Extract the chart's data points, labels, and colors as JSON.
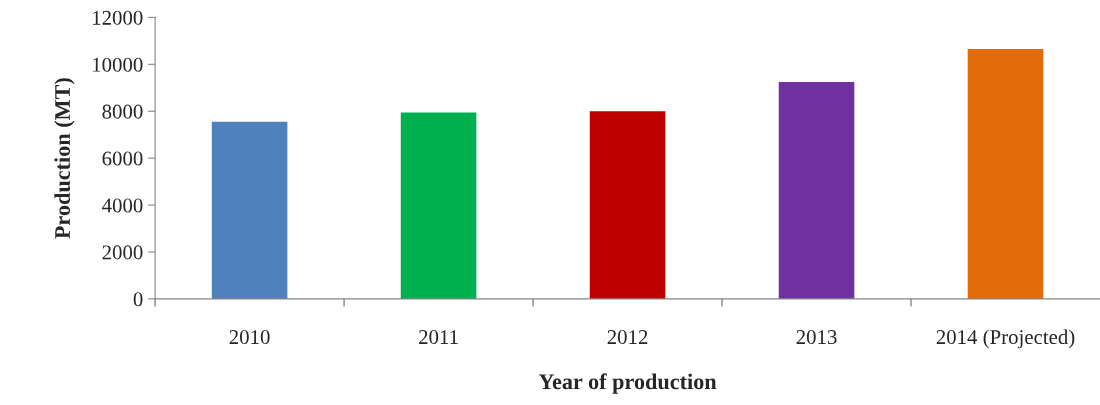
{
  "chart_data": {
    "type": "bar",
    "xlabel": "Year of production",
    "ylabel": "Production (MT)",
    "categories": [
      "2010",
      "2011",
      "2012",
      "2013",
      "2014 (Projected)"
    ],
    "values": [
      7550,
      7950,
      8000,
      9250,
      10650
    ],
    "colors": [
      "#4f81bd",
      "#00b050",
      "#c00000",
      "#7030a0",
      "#e36c0a"
    ],
    "ylim": [
      0,
      12000
    ],
    "yticks": [
      0,
      2000,
      4000,
      6000,
      8000,
      10000,
      12000
    ],
    "grid": false,
    "legend": false
  }
}
